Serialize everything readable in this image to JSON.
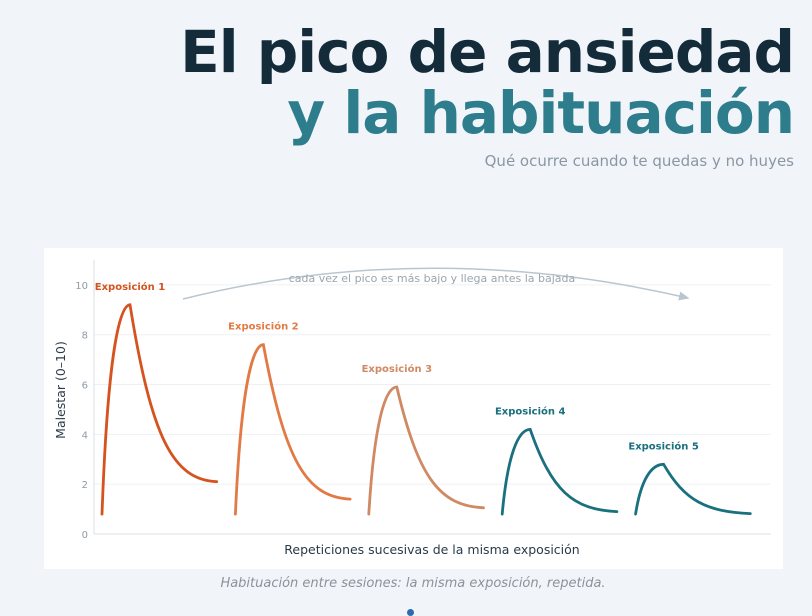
{
  "header": {
    "title_line1": "El pico de ansiedad",
    "title_line2": "y la habituación",
    "subtitle": "Qué ocurre cuando te quedas y no huyes"
  },
  "caption": "Habituación entre sesiones: la misma exposición, repetida.",
  "colors": {
    "background": "#f1f5fa",
    "title_dark": "#142b3a",
    "title_teal": "#2e7d8c",
    "arrow": "#b9c6cf"
  },
  "chart_data": {
    "type": "line",
    "xlabel": "Repeticiones sucesivas de la misma exposición",
    "ylabel": "Malestar (0–10)",
    "ylim": [
      0,
      11
    ],
    "yticks": [
      0,
      2,
      4,
      6,
      8,
      10
    ],
    "xticks": [],
    "grid": true,
    "annotation": "cada vez el pico es más bajo y llega antes la bajada",
    "series": [
      {
        "name": "Exposición 1",
        "color": "#d5531f",
        "start": 0.8,
        "peak": 9.2,
        "end": 2.1
      },
      {
        "name": "Exposición 2",
        "color": "#e27a45",
        "start": 0.8,
        "peak": 7.6,
        "end": 1.4
      },
      {
        "name": "Exposición 3",
        "color": "#d08a63",
        "start": 0.8,
        "peak": 5.9,
        "end": 1.05
      },
      {
        "name": "Exposición 4",
        "color": "#19707e",
        "start": 0.8,
        "peak": 4.2,
        "end": 0.9
      },
      {
        "name": "Exposición 5",
        "color": "#19707e",
        "start": 0.8,
        "peak": 2.8,
        "end": 0.82
      }
    ]
  }
}
